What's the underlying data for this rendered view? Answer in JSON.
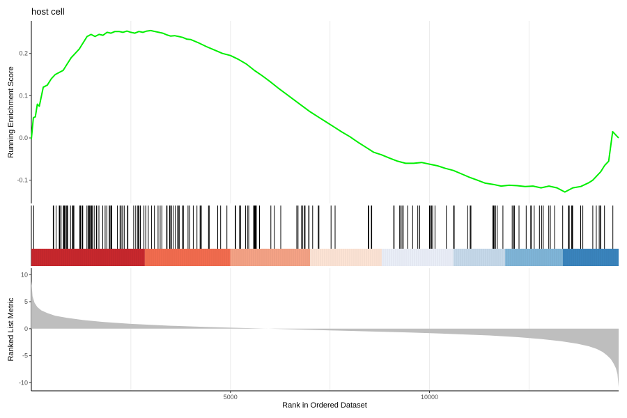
{
  "chart_data": {
    "type": "line",
    "title": "host cell",
    "xlabel": "Rank in Ordered Dataset",
    "xlim": [
      0,
      14750
    ],
    "x_ticks": [
      5000,
      10000
    ],
    "x_tick_labels": [
      "5000",
      "10000"
    ],
    "panels": {
      "running_score": {
        "ylabel": "Running Enrichment Score",
        "ylim": [
          -0.155,
          0.277
        ],
        "y_ticks": [
          -0.1,
          0.0,
          0.1,
          0.2
        ],
        "y_tick_labels": [
          "-0.1",
          "0.0",
          "0.1",
          "0.2"
        ],
        "series": {
          "color": "#00ee00",
          "x": [
            0,
            50,
            100,
            150,
            200,
            300,
            400,
            500,
            600,
            700,
            800,
            900,
            1000,
            1100,
            1200,
            1300,
            1400,
            1500,
            1600,
            1700,
            1800,
            1900,
            2000,
            2100,
            2200,
            2300,
            2400,
            2500,
            2600,
            2700,
            2800,
            2900,
            3000,
            3100,
            3200,
            3300,
            3400,
            3500,
            3600,
            3700,
            3800,
            3900,
            4000,
            4200,
            4400,
            4600,
            4800,
            5000,
            5200,
            5400,
            5600,
            5800,
            6000,
            6200,
            6400,
            6600,
            6800,
            7000,
            7200,
            7400,
            7600,
            7800,
            8000,
            8200,
            8400,
            8600,
            8800,
            9000,
            9200,
            9400,
            9600,
            9800,
            10000,
            10200,
            10400,
            10600,
            10800,
            11000,
            11200,
            11400,
            11600,
            11800,
            12000,
            12200,
            12400,
            12600,
            12800,
            13000,
            13200,
            13400,
            13600,
            13800,
            14000,
            14100,
            14200,
            14300,
            14400,
            14500,
            14600,
            14750
          ],
          "y": [
            -0.003,
            0.048,
            0.05,
            0.08,
            0.075,
            0.12,
            0.125,
            0.14,
            0.15,
            0.155,
            0.16,
            0.175,
            0.19,
            0.2,
            0.21,
            0.225,
            0.24,
            0.245,
            0.24,
            0.245,
            0.243,
            0.25,
            0.248,
            0.252,
            0.252,
            0.25,
            0.253,
            0.25,
            0.248,
            0.252,
            0.25,
            0.253,
            0.254,
            0.252,
            0.25,
            0.248,
            0.244,
            0.241,
            0.242,
            0.24,
            0.238,
            0.234,
            0.233,
            0.225,
            0.216,
            0.208,
            0.2,
            0.195,
            0.186,
            0.175,
            0.16,
            0.147,
            0.133,
            0.118,
            0.104,
            0.09,
            0.076,
            0.062,
            0.05,
            0.038,
            0.026,
            0.014,
            0.003,
            -0.01,
            -0.022,
            -0.034,
            -0.04,
            -0.048,
            -0.055,
            -0.06,
            -0.06,
            -0.058,
            -0.062,
            -0.066,
            -0.072,
            -0.077,
            -0.085,
            -0.093,
            -0.1,
            -0.107,
            -0.11,
            -0.114,
            -0.112,
            -0.113,
            -0.115,
            -0.114,
            -0.118,
            -0.114,
            -0.118,
            -0.128,
            -0.118,
            -0.115,
            -0.106,
            -0.1,
            -0.09,
            -0.08,
            -0.065,
            -0.055,
            0.015,
            0.0
          ]
        }
      },
      "gene_hits": {
        "bar_color": "#000000",
        "heatmap_colors": [
          "#c8282d",
          "#f26c4f",
          "#f5a386",
          "#fde4d5",
          "#eaeff8",
          "#c6d9ea",
          "#7fb5d8",
          "#3a84bd"
        ],
        "heatmap_breaks": [
          0,
          2850,
          5000,
          7000,
          8800,
          10600,
          11900,
          13350,
          14750
        ]
      },
      "ranked_list": {
        "ylabel": "Ranked List Metric",
        "ylim": [
          -11.5,
          11.2
        ],
        "y_ticks": [
          10,
          5,
          0,
          -5,
          -10
        ],
        "y_tick_labels": [
          "10",
          "5",
          "0",
          "-5",
          "-10"
        ],
        "fill_color": "#bebebe",
        "x": [
          0,
          30,
          80,
          150,
          250,
          400,
          600,
          900,
          1300,
          1800,
          2500,
          3500,
          4500,
          5500,
          6500,
          7500,
          8500,
          9500,
          10500,
          11500,
          12200,
          12800,
          13300,
          13700,
          14000,
          14200,
          14350,
          14450,
          14550,
          14620,
          14680,
          14720,
          14750
        ],
        "y": [
          8.8,
          6.0,
          4.8,
          4.0,
          3.4,
          2.9,
          2.4,
          2.0,
          1.6,
          1.25,
          0.9,
          0.55,
          0.3,
          0.1,
          -0.1,
          -0.3,
          -0.5,
          -0.7,
          -0.95,
          -1.25,
          -1.55,
          -1.9,
          -2.3,
          -2.75,
          -3.25,
          -3.75,
          -4.3,
          -4.9,
          -5.6,
          -6.4,
          -7.3,
          -8.4,
          -10.8
        ]
      }
    }
  }
}
